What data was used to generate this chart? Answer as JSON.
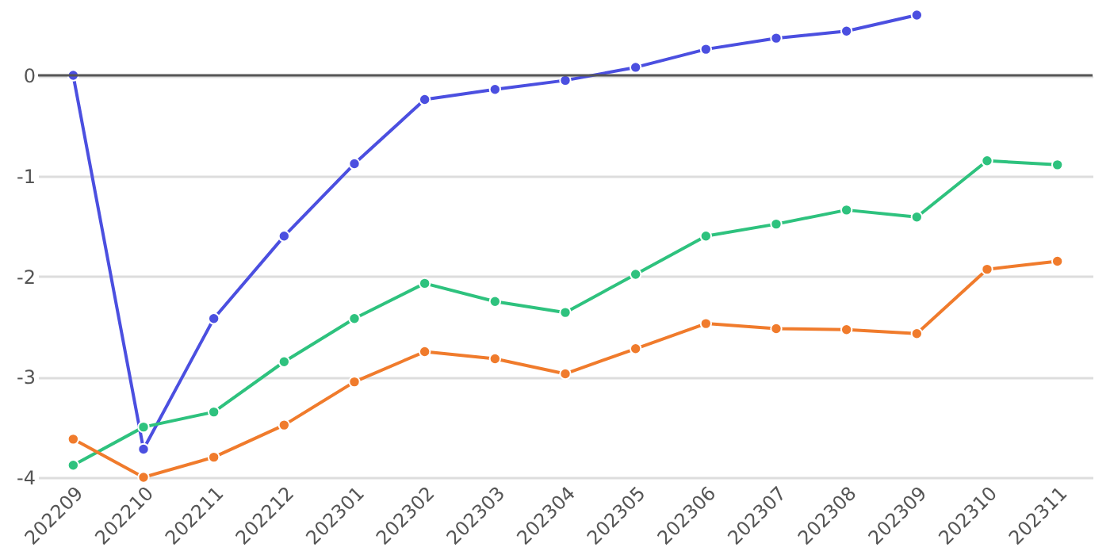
{
  "chart_data": {
    "type": "line",
    "categories": [
      "202209",
      "202210",
      "202211",
      "202212",
      "202301",
      "202302",
      "202303",
      "202304",
      "202305",
      "202306",
      "202307",
      "202308",
      "202309",
      "202310",
      "202311"
    ],
    "series": [
      {
        "color": "#4b4fe0",
        "values": [
          0,
          -3.72,
          -2.42,
          -1.6,
          -0.88,
          -0.24,
          -0.14,
          -0.05,
          0.08,
          0.26,
          0.37,
          0.44,
          0.6,
          null,
          null
        ]
      },
      {
        "color": "#2ec27e",
        "values": [
          -3.88,
          -3.5,
          -3.35,
          -2.85,
          -2.42,
          -2.07,
          -2.25,
          -2.36,
          -1.98,
          -1.6,
          -1.48,
          -1.34,
          -1.41,
          -0.85,
          -0.89
        ]
      },
      {
        "color": "#f07b2c",
        "values": [
          -3.62,
          -4.0,
          -3.8,
          -3.48,
          -3.05,
          -2.75,
          -2.82,
          -2.97,
          -2.72,
          -2.47,
          -2.52,
          -2.53,
          -2.57,
          -1.93,
          -1.85
        ]
      }
    ],
    "ylim": [
      -4,
      0.75
    ],
    "yticks": [
      -4,
      -3,
      -2,
      -1,
      0
    ],
    "grid": "y",
    "marker": "circle",
    "line_style": "solid",
    "legend": false,
    "ref_lines": [
      {
        "axis": "y",
        "value": 0,
        "color": "#555555"
      }
    ]
  }
}
